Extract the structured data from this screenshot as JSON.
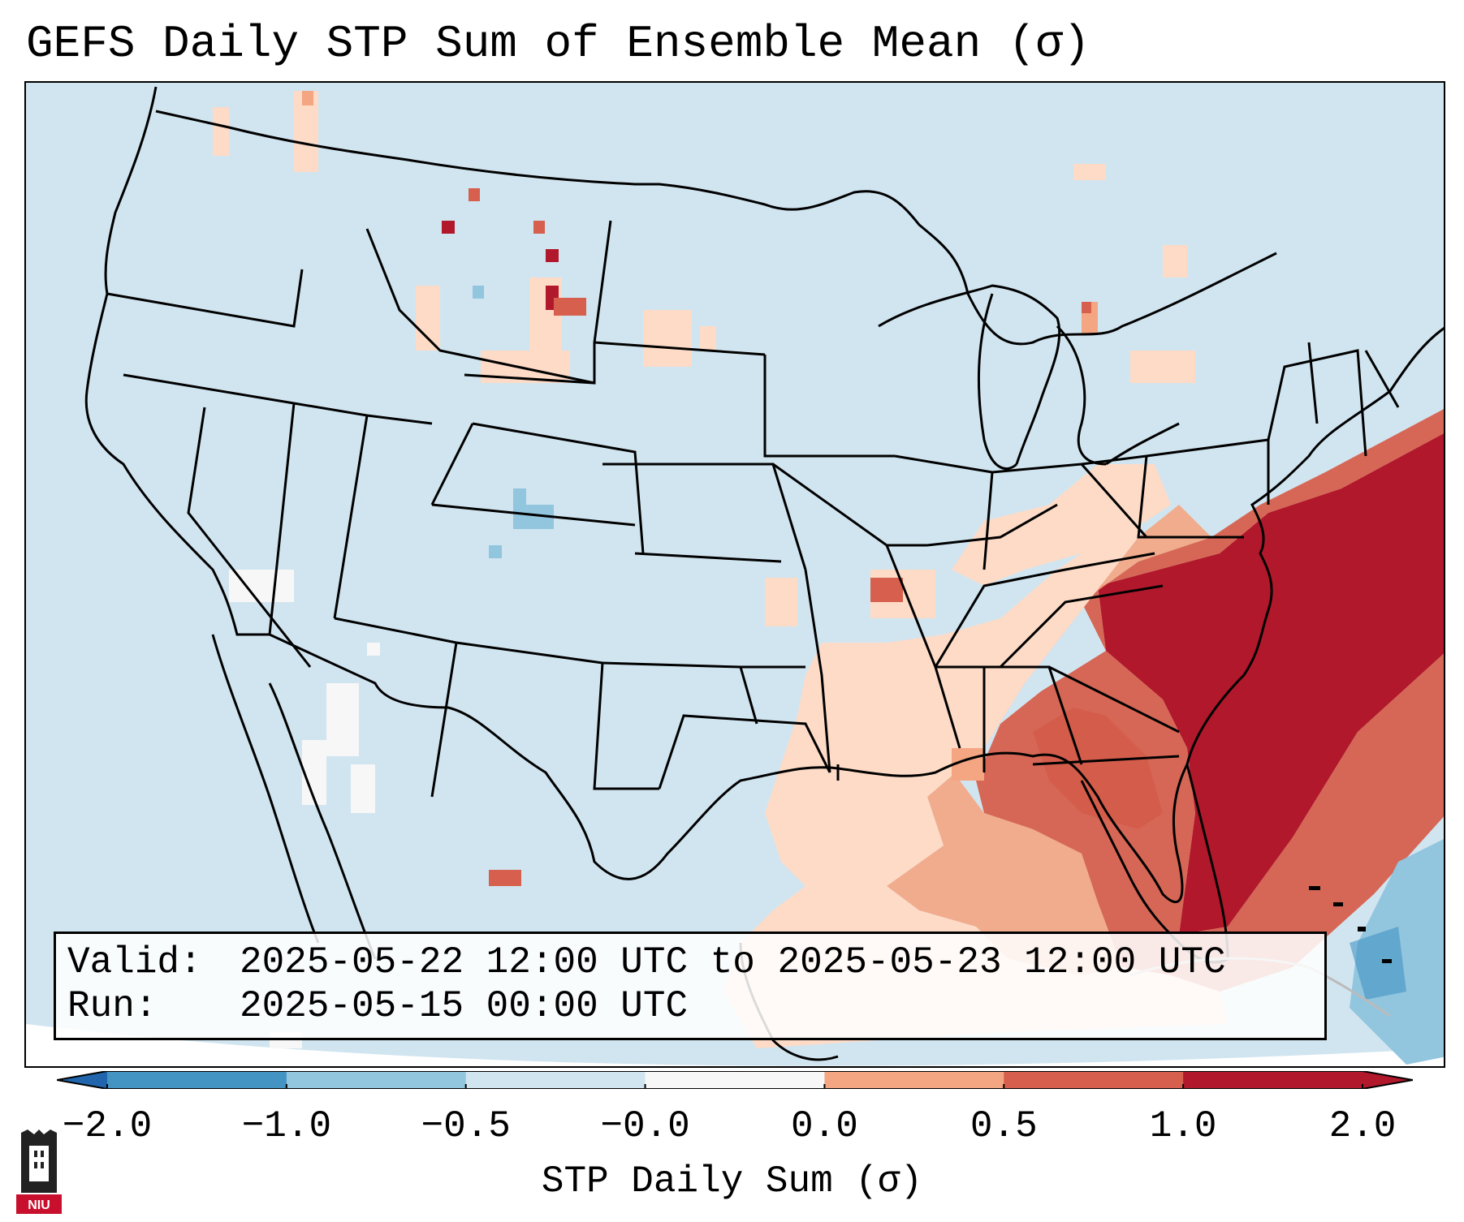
{
  "title": "GEFS Daily STP Sum of Ensemble Mean (σ)",
  "info": {
    "valid_label": "Valid:",
    "valid_value": "2025-05-22 12:00 UTC to 2025-05-23 12:00 UTC",
    "run_label": "Run:",
    "run_value": "2025-05-15 00:00 UTC"
  },
  "colorbar": {
    "label": "STP Daily Sum (σ)",
    "ticks": [
      "−2.0",
      "−1.0",
      "−0.5",
      "−0.0",
      "0.0",
      "0.5",
      "1.0",
      "2.0"
    ],
    "colors": [
      "#4393c3",
      "#92c5de",
      "#d1e5f0",
      "#f7f7f7",
      "#fddbc7",
      "#f4a582",
      "#d6604d",
      "#b2182b"
    ],
    "extend_low_color": "#2166ac",
    "extend_high_color": "#b2182b"
  },
  "map": {
    "background_color": "#d1e5f0",
    "line_color": "#000000",
    "region": "Contiguous United States",
    "highlights": [
      {
        "area": "Southeast US / Atlantic coast",
        "level": "≥ 2.0"
      },
      {
        "area": "Georgia / South Carolina",
        "level": "1.0 to 2.0"
      },
      {
        "area": "Gulf Coast / Lower Mississippi Valley",
        "level": "0.0 to 1.0"
      },
      {
        "area": "Northern Rockies / Montana",
        "level": "scattered 0.0 to 2.0"
      },
      {
        "area": "Northern Mexico",
        "level": "−0.0 to 0.0"
      },
      {
        "area": "Bahamas / Western Atlantic",
        "level": "−0.5 to −1.0"
      }
    ]
  },
  "logo": {
    "text": "NIU",
    "color": "#c8102e"
  }
}
